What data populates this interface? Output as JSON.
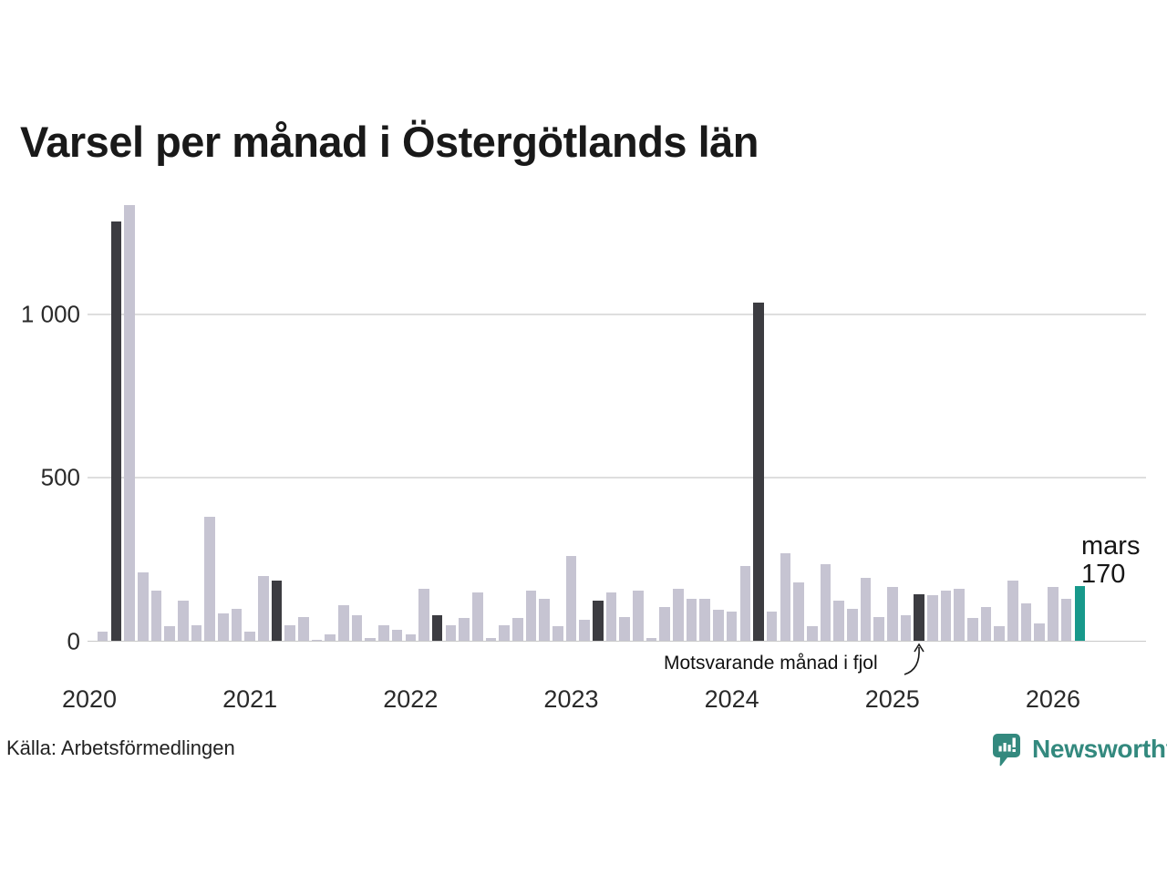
{
  "title": "Varsel per månad i Östergötlands län",
  "source_note": "Källa: Arbetsförmedlingen",
  "annotation": {
    "text": "Motsvarande månad i fjol",
    "points_to": "2025-03"
  },
  "current_month_label": {
    "line1": "mars",
    "line2": "170"
  },
  "branding": {
    "wordmark": "Newsworthy",
    "logo_icon": "newsworthy-speech-bubble-chart-icon",
    "color": "#33897e"
  },
  "colors": {
    "bar_default": "#c6c4d2",
    "bar_same_month_previous_years": "#3c3c41",
    "bar_current": "#18998b",
    "gridline": "#dedede",
    "axis_line": "#c9c9c9",
    "text": "#1a1a1a"
  },
  "chart_data": {
    "type": "bar",
    "title": "Varsel per månad i Östergötlands län",
    "ylim": [
      0,
      1400
    ],
    "grid": true,
    "yticks": [
      {
        "value": 0,
        "label": "0"
      },
      {
        "value": 500,
        "label": "500"
      },
      {
        "value": 1000,
        "label": "1 000"
      }
    ],
    "x_year_labels": [
      "2020",
      "2021",
      "2022",
      "2023",
      "2024",
      "2025",
      "2026"
    ],
    "x": [
      "2020-01",
      "2020-02",
      "2020-03",
      "2020-04",
      "2020-05",
      "2020-06",
      "2020-07",
      "2020-08",
      "2020-09",
      "2020-10",
      "2020-11",
      "2020-12",
      "2021-01",
      "2021-02",
      "2021-03",
      "2021-04",
      "2021-05",
      "2021-06",
      "2021-07",
      "2021-08",
      "2021-09",
      "2021-10",
      "2021-11",
      "2021-12",
      "2022-01",
      "2022-02",
      "2022-03",
      "2022-04",
      "2022-05",
      "2022-06",
      "2022-07",
      "2022-08",
      "2022-09",
      "2022-10",
      "2022-11",
      "2022-12",
      "2023-01",
      "2023-02",
      "2023-03",
      "2023-04",
      "2023-05",
      "2023-06",
      "2023-07",
      "2023-08",
      "2023-09",
      "2023-10",
      "2023-11",
      "2023-12",
      "2024-01",
      "2024-02",
      "2024-03",
      "2024-04",
      "2024-05",
      "2024-06",
      "2024-07",
      "2024-08",
      "2024-09",
      "2024-10",
      "2024-11",
      "2024-12",
      "2025-01",
      "2025-02",
      "2025-03",
      "2025-04",
      "2025-05",
      "2025-06",
      "2025-07",
      "2025-08",
      "2025-09",
      "2025-10",
      "2025-11",
      "2025-12",
      "2026-01",
      "2026-02",
      "2026-03"
    ],
    "values": [
      0,
      30,
      1285,
      1335,
      210,
      155,
      45,
      125,
      50,
      380,
      85,
      100,
      30,
      200,
      185,
      50,
      75,
      5,
      20,
      110,
      80,
      10,
      50,
      35,
      20,
      160,
      80,
      50,
      70,
      150,
      10,
      50,
      70,
      155,
      130,
      45,
      260,
      65,
      125,
      150,
      75,
      155,
      10,
      105,
      160,
      130,
      130,
      95,
      90,
      230,
      1035,
      90,
      270,
      180,
      45,
      235,
      125,
      100,
      195,
      75,
      165,
      80,
      145,
      140,
      155,
      160,
      70,
      105,
      45,
      185,
      115,
      55,
      165,
      130,
      170
    ],
    "highlight": {
      "same_month_previous_years": [
        "2020-03",
        "2021-03",
        "2022-03",
        "2023-03",
        "2024-03",
        "2025-03"
      ],
      "current": "2026-03"
    }
  }
}
